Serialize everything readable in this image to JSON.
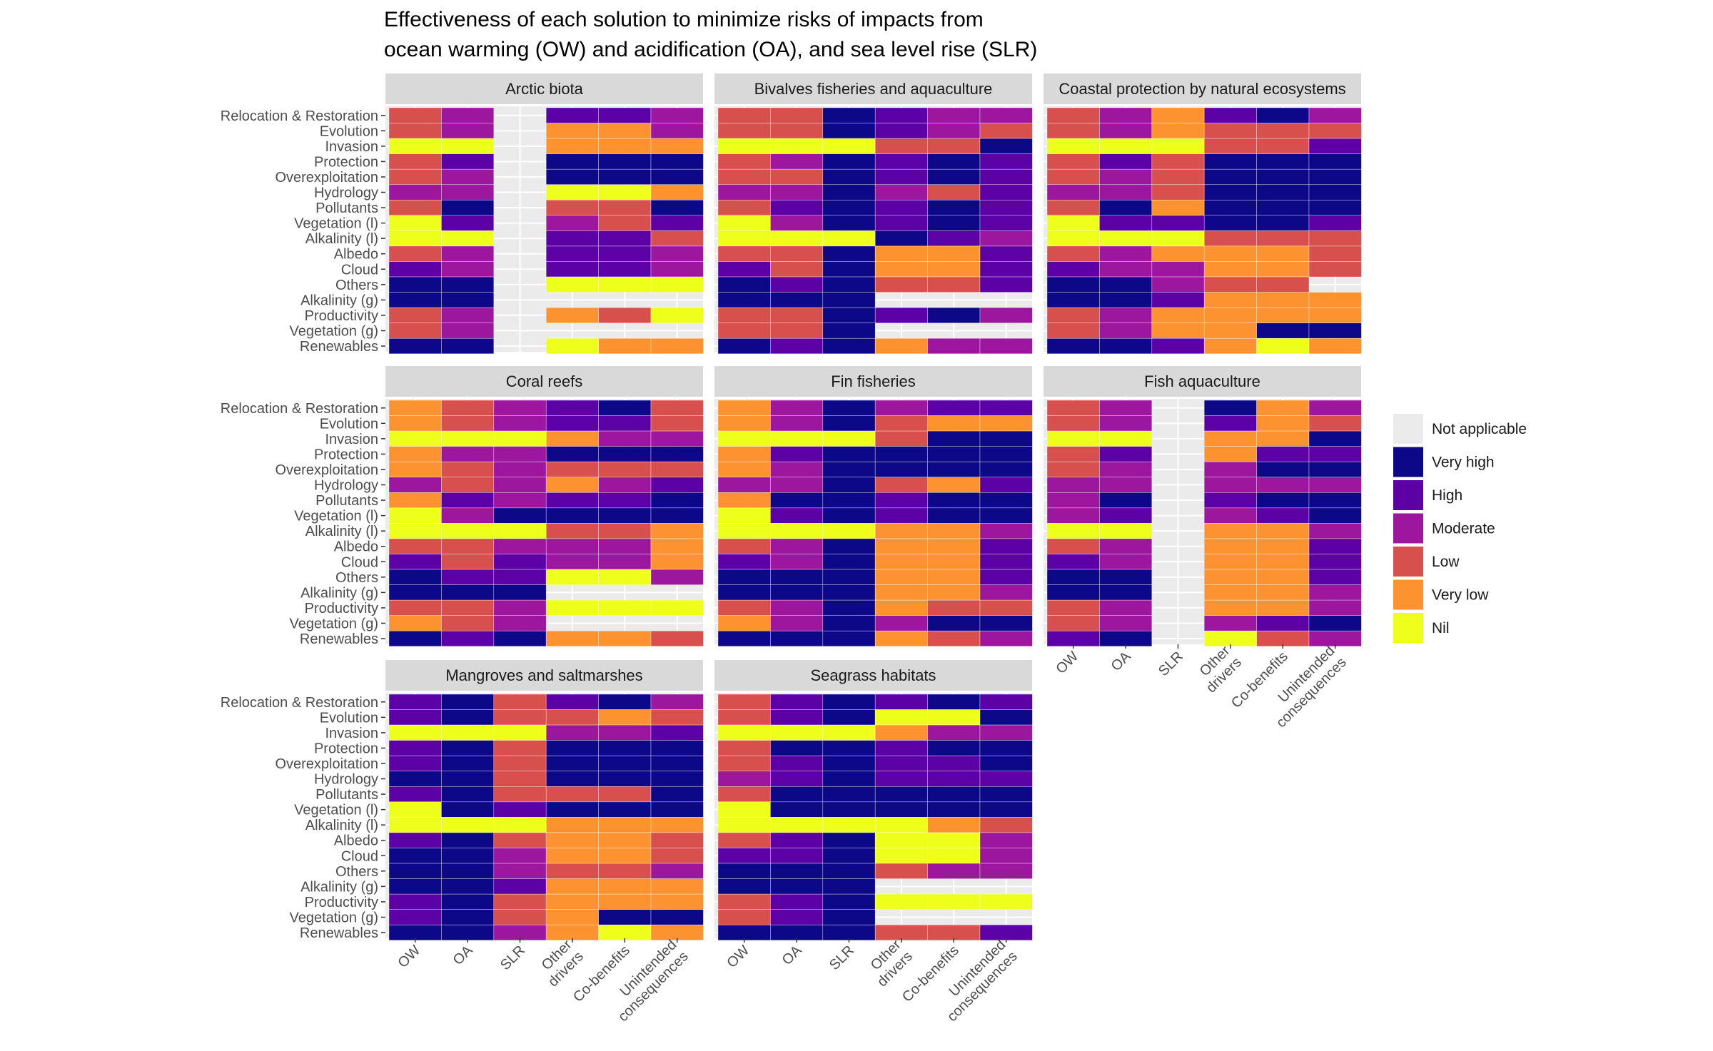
{
  "chart_data": {
    "type": "heatmap",
    "title_lines": [
      "Effectiveness of each solution to minimize risks of impacts from",
      "ocean warming (OW) and acidification (OA), and sea level rise (SLR)"
    ],
    "rows": [
      "Relocation & Restoration",
      "Evolution",
      "Invasion",
      "Protection",
      "Overexploitation",
      "Hydrology",
      "Pollutants",
      "Vegetation (l)",
      "Alkalinity (l)",
      "Albedo",
      "Cloud",
      "Others",
      "Alkalinity (g)",
      "Productivity",
      "Vegetation (g)",
      "Renewables"
    ],
    "columns": [
      [
        "OW"
      ],
      [
        "OA"
      ],
      [
        "SLR"
      ],
      [
        "Other",
        "drivers"
      ],
      [
        "Co-benefits"
      ],
      [
        "Unintended",
        "consequences"
      ]
    ],
    "legend": {
      "na": "Not applicable",
      "levels": [
        {
          "key": "VH",
          "label": "Very high",
          "color": "#0d0887"
        },
        {
          "key": "H",
          "label": "High",
          "color": "#5c01a6"
        },
        {
          "key": "M",
          "label": "Moderate",
          "color": "#9c179e"
        },
        {
          "key": "L",
          "label": "Low",
          "color": "#d8504d"
        },
        {
          "key": "VL",
          "label": "Very low",
          "color": "#fd9230"
        },
        {
          "key": "N",
          "label": "Nil",
          "color": "#eeff1c"
        }
      ],
      "na_color": "#ebebeb"
    },
    "panels": [
      {
        "title": "Arctic biota",
        "cells": [
          [
            "L",
            "M",
            "NA",
            "H",
            "H",
            "M"
          ],
          [
            "L",
            "M",
            "NA",
            "VL",
            "VL",
            "M"
          ],
          [
            "N",
            "N",
            "NA",
            "VL",
            "VL",
            "VL"
          ],
          [
            "L",
            "H",
            "NA",
            "VH",
            "VH",
            "VH"
          ],
          [
            "L",
            "M",
            "NA",
            "VH",
            "VH",
            "VH"
          ],
          [
            "M",
            "M",
            "NA",
            "N",
            "N",
            "VL"
          ],
          [
            "L",
            "VH",
            "NA",
            "L",
            "L",
            "VH"
          ],
          [
            "N",
            "H",
            "NA",
            "M",
            "L",
            "H"
          ],
          [
            "N",
            "N",
            "NA",
            "H",
            "H",
            "L"
          ],
          [
            "L",
            "M",
            "NA",
            "H",
            "H",
            "M"
          ],
          [
            "H",
            "M",
            "NA",
            "H",
            "H",
            "M"
          ],
          [
            "VH",
            "VH",
            "NA",
            "N",
            "N",
            "N"
          ],
          [
            "VH",
            "VH",
            "NA",
            "NA",
            "NA",
            "NA"
          ],
          [
            "L",
            "M",
            "NA",
            "VL",
            "L",
            "N"
          ],
          [
            "L",
            "M",
            "NA",
            "NA",
            "NA",
            "NA"
          ],
          [
            "VH",
            "VH",
            "NA",
            "N",
            "VL",
            "VL"
          ]
        ]
      },
      {
        "title": "Bivalves fisheries and aquaculture",
        "cells": [
          [
            "L",
            "L",
            "VH",
            "H",
            "M",
            "M"
          ],
          [
            "L",
            "L",
            "VH",
            "H",
            "M",
            "L"
          ],
          [
            "N",
            "N",
            "N",
            "L",
            "L",
            "VH"
          ],
          [
            "L",
            "M",
            "VH",
            "H",
            "VH",
            "H"
          ],
          [
            "L",
            "L",
            "VH",
            "H",
            "VH",
            "H"
          ],
          [
            "M",
            "M",
            "VH",
            "M",
            "L",
            "H"
          ],
          [
            "L",
            "H",
            "VH",
            "H",
            "VH",
            "H"
          ],
          [
            "N",
            "M",
            "VH",
            "H",
            "VH",
            "H"
          ],
          [
            "N",
            "N",
            "N",
            "VH",
            "H",
            "M"
          ],
          [
            "L",
            "L",
            "VH",
            "VL",
            "VL",
            "H"
          ],
          [
            "H",
            "L",
            "VH",
            "VL",
            "VL",
            "H"
          ],
          [
            "VH",
            "H",
            "VH",
            "L",
            "L",
            "H"
          ],
          [
            "VH",
            "VH",
            "VH",
            "NA",
            "NA",
            "NA"
          ],
          [
            "L",
            "L",
            "VH",
            "H",
            "VH",
            "M"
          ],
          [
            "L",
            "L",
            "VH",
            "NA",
            "NA",
            "NA"
          ],
          [
            "VH",
            "H",
            "VH",
            "VL",
            "M",
            "M"
          ]
        ]
      },
      {
        "title": "Coastal protection by natural ecosystems",
        "cells": [
          [
            "L",
            "M",
            "VL",
            "H",
            "VH",
            "M"
          ],
          [
            "L",
            "M",
            "VL",
            "L",
            "L",
            "L"
          ],
          [
            "N",
            "N",
            "N",
            "L",
            "L",
            "H"
          ],
          [
            "L",
            "H",
            "L",
            "VH",
            "VH",
            "VH"
          ],
          [
            "L",
            "M",
            "L",
            "VH",
            "VH",
            "VH"
          ],
          [
            "M",
            "M",
            "L",
            "VH",
            "VH",
            "VH"
          ],
          [
            "L",
            "VH",
            "VL",
            "VH",
            "VH",
            "VH"
          ],
          [
            "N",
            "H",
            "H",
            "VH",
            "VH",
            "H"
          ],
          [
            "N",
            "N",
            "N",
            "L",
            "L",
            "L"
          ],
          [
            "L",
            "M",
            "VL",
            "VL",
            "VL",
            "L"
          ],
          [
            "H",
            "M",
            "M",
            "VL",
            "VL",
            "L"
          ],
          [
            "VH",
            "VH",
            "M",
            "L",
            "L",
            "NA"
          ],
          [
            "VH",
            "VH",
            "H",
            "VL",
            "VL",
            "VL"
          ],
          [
            "L",
            "M",
            "VL",
            "VL",
            "VL",
            "VL"
          ],
          [
            "L",
            "M",
            "VL",
            "VL",
            "VH",
            "VH"
          ],
          [
            "VH",
            "VH",
            "H",
            "VL",
            "N",
            "VL"
          ]
        ]
      },
      {
        "title": "Coral reefs",
        "cells": [
          [
            "VL",
            "L",
            "M",
            "H",
            "VH",
            "L"
          ],
          [
            "VL",
            "L",
            "M",
            "H",
            "H",
            "L"
          ],
          [
            "N",
            "N",
            "N",
            "VL",
            "M",
            "M"
          ],
          [
            "VL",
            "M",
            "M",
            "VH",
            "VH",
            "VH"
          ],
          [
            "VL",
            "L",
            "M",
            "L",
            "L",
            "L"
          ],
          [
            "M",
            "L",
            "M",
            "VL",
            "M",
            "H"
          ],
          [
            "VL",
            "H",
            "M",
            "H",
            "H",
            "VH"
          ],
          [
            "N",
            "M",
            "VH",
            "VH",
            "VH",
            "VH"
          ],
          [
            "N",
            "N",
            "N",
            "L",
            "L",
            "VL"
          ],
          [
            "L",
            "L",
            "M",
            "M",
            "M",
            "VL"
          ],
          [
            "H",
            "L",
            "H",
            "M",
            "M",
            "VL"
          ],
          [
            "VH",
            "H",
            "H",
            "N",
            "N",
            "M"
          ],
          [
            "VH",
            "VH",
            "VH",
            "NA",
            "NA",
            "NA"
          ],
          [
            "L",
            "L",
            "M",
            "N",
            "N",
            "N"
          ],
          [
            "VL",
            "L",
            "M",
            "NA",
            "NA",
            "NA"
          ],
          [
            "VH",
            "H",
            "VH",
            "VL",
            "VL",
            "L"
          ]
        ]
      },
      {
        "title": "Fin fisheries",
        "cells": [
          [
            "VL",
            "M",
            "VH",
            "M",
            "H",
            "H"
          ],
          [
            "VL",
            "M",
            "VH",
            "L",
            "VL",
            "VL"
          ],
          [
            "N",
            "N",
            "N",
            "L",
            "VH",
            "VH"
          ],
          [
            "VL",
            "H",
            "VH",
            "VH",
            "VH",
            "VH"
          ],
          [
            "VL",
            "M",
            "VH",
            "VH",
            "VH",
            "VH"
          ],
          [
            "M",
            "M",
            "VH",
            "L",
            "VL",
            "H"
          ],
          [
            "VL",
            "VH",
            "VH",
            "H",
            "VH",
            "VH"
          ],
          [
            "N",
            "H",
            "VH",
            "H",
            "VH",
            "VH"
          ],
          [
            "N",
            "N",
            "N",
            "VL",
            "VL",
            "M"
          ],
          [
            "L",
            "M",
            "VH",
            "VL",
            "VL",
            "H"
          ],
          [
            "H",
            "M",
            "VH",
            "VL",
            "VL",
            "H"
          ],
          [
            "VH",
            "VH",
            "VH",
            "VL",
            "VL",
            "H"
          ],
          [
            "VH",
            "VH",
            "VH",
            "VL",
            "VL",
            "M"
          ],
          [
            "L",
            "M",
            "VH",
            "VL",
            "L",
            "L"
          ],
          [
            "VL",
            "M",
            "VH",
            "M",
            "VH",
            "VH"
          ],
          [
            "VH",
            "VH",
            "VH",
            "VL",
            "L",
            "M"
          ]
        ]
      },
      {
        "title": "Fish aquaculture",
        "cells": [
          [
            "L",
            "M",
            "NA",
            "VH",
            "VL",
            "M"
          ],
          [
            "L",
            "M",
            "NA",
            "H",
            "VL",
            "L"
          ],
          [
            "N",
            "N",
            "NA",
            "VL",
            "VL",
            "VH"
          ],
          [
            "L",
            "H",
            "NA",
            "VL",
            "H",
            "H"
          ],
          [
            "L",
            "M",
            "NA",
            "M",
            "VH",
            "VH"
          ],
          [
            "M",
            "M",
            "NA",
            "M",
            "M",
            "M"
          ],
          [
            "M",
            "VH",
            "NA",
            "H",
            "VH",
            "VH"
          ],
          [
            "M",
            "H",
            "NA",
            "M",
            "H",
            "VH"
          ],
          [
            "N",
            "N",
            "NA",
            "VL",
            "VL",
            "M"
          ],
          [
            "L",
            "M",
            "NA",
            "VL",
            "VL",
            "H"
          ],
          [
            "H",
            "M",
            "NA",
            "VL",
            "VL",
            "H"
          ],
          [
            "VH",
            "VH",
            "NA",
            "VL",
            "VL",
            "H"
          ],
          [
            "VH",
            "VH",
            "NA",
            "VL",
            "VL",
            "M"
          ],
          [
            "L",
            "M",
            "NA",
            "VL",
            "VL",
            "M"
          ],
          [
            "L",
            "M",
            "NA",
            "M",
            "H",
            "VH"
          ],
          [
            "H",
            "VH",
            "NA",
            "N",
            "L",
            "M"
          ]
        ]
      },
      {
        "title": "Mangroves and saltmarshes",
        "cells": [
          [
            "H",
            "VH",
            "L",
            "H",
            "VH",
            "M"
          ],
          [
            "H",
            "VH",
            "L",
            "L",
            "VL",
            "L"
          ],
          [
            "N",
            "N",
            "N",
            "M",
            "M",
            "H"
          ],
          [
            "H",
            "VH",
            "L",
            "VH",
            "VH",
            "VH"
          ],
          [
            "H",
            "VH",
            "L",
            "VH",
            "VH",
            "VH"
          ],
          [
            "VH",
            "VH",
            "L",
            "VH",
            "VH",
            "VH"
          ],
          [
            "H",
            "VH",
            "L",
            "L",
            "L",
            "VH"
          ],
          [
            "N",
            "VH",
            "H",
            "VH",
            "VH",
            "VH"
          ],
          [
            "N",
            "N",
            "N",
            "VL",
            "VL",
            "VL"
          ],
          [
            "H",
            "VH",
            "L",
            "VL",
            "VL",
            "L"
          ],
          [
            "VH",
            "VH",
            "M",
            "VL",
            "VL",
            "L"
          ],
          [
            "VH",
            "VH",
            "M",
            "L",
            "L",
            "M"
          ],
          [
            "VH",
            "VH",
            "H",
            "VL",
            "VL",
            "VL"
          ],
          [
            "H",
            "VH",
            "L",
            "VL",
            "VL",
            "VL"
          ],
          [
            "H",
            "VH",
            "L",
            "VL",
            "VH",
            "VH"
          ],
          [
            "VH",
            "VH",
            "M",
            "VL",
            "N",
            "VL"
          ]
        ]
      },
      {
        "title": "Seagrass habitats",
        "cells": [
          [
            "L",
            "H",
            "VH",
            "H",
            "VH",
            "H"
          ],
          [
            "L",
            "H",
            "VH",
            "N",
            "N",
            "VH"
          ],
          [
            "N",
            "N",
            "N",
            "VL",
            "M",
            "M"
          ],
          [
            "L",
            "VH",
            "VH",
            "H",
            "VH",
            "VH"
          ],
          [
            "L",
            "H",
            "VH",
            "H",
            "H",
            "VH"
          ],
          [
            "M",
            "H",
            "VH",
            "H",
            "H",
            "H"
          ],
          [
            "L",
            "VH",
            "VH",
            "VH",
            "VH",
            "VH"
          ],
          [
            "N",
            "VH",
            "VH",
            "VH",
            "VH",
            "VH"
          ],
          [
            "N",
            "N",
            "N",
            "N",
            "VL",
            "L"
          ],
          [
            "L",
            "H",
            "VH",
            "N",
            "N",
            "M"
          ],
          [
            "H",
            "H",
            "VH",
            "N",
            "N",
            "M"
          ],
          [
            "VH",
            "VH",
            "VH",
            "L",
            "M",
            "M"
          ],
          [
            "VH",
            "VH",
            "VH",
            "NA",
            "NA",
            "NA"
          ],
          [
            "L",
            "H",
            "VH",
            "N",
            "N",
            "N"
          ],
          [
            "L",
            "H",
            "VH",
            "NA",
            "NA",
            "NA"
          ],
          [
            "VH",
            "VH",
            "VH",
            "L",
            "L",
            "H"
          ]
        ]
      }
    ]
  }
}
